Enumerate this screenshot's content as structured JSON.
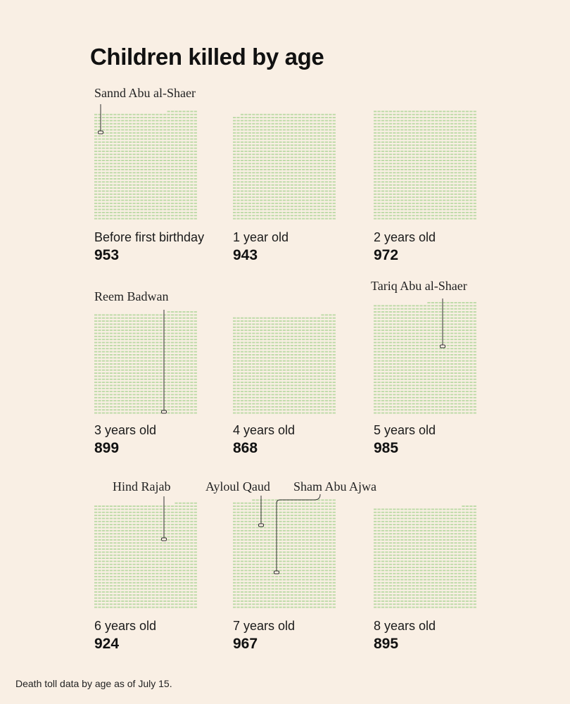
{
  "title": "Children killed by age",
  "footnote": "Death toll data by age as of July 15.",
  "colors": {
    "background": "#f9efe4",
    "tick": "#bcdaa6",
    "leader": "#333333"
  },
  "chart_data": {
    "type": "unit-grid",
    "title": "Children killed by age",
    "units_per_row": 27,
    "panels": [
      {
        "label": "Before first birthday",
        "count_text": "953",
        "value": 953
      },
      {
        "label": "1 year old",
        "count_text": "943",
        "value": 943
      },
      {
        "label": "2 years old",
        "count_text": "972",
        "value": 972
      },
      {
        "label": "3 years old",
        "count_text": "899",
        "value": 899
      },
      {
        "label": "4 years old",
        "count_text": "868",
        "value": 868
      },
      {
        "label": "5 years old",
        "count_text": "985",
        "value": 985
      },
      {
        "label": "6 years old",
        "count_text": "924",
        "value": 924
      },
      {
        "label": "7 years old",
        "count_text": "967",
        "value": 967
      },
      {
        "label": "8 years old",
        "count_text": "895",
        "value": 895
      }
    ],
    "annotations": [
      {
        "name": "Sannd Abu al-Shaer",
        "panel": 0
      },
      {
        "name": "Reem Badwan",
        "panel": 3
      },
      {
        "name": "Tariq Abu al-Shaer",
        "panel": 5
      },
      {
        "name": "Hind Rajab",
        "panel": 6
      },
      {
        "name": "Ayloul Qaud",
        "panel": 7
      },
      {
        "name": "Sham Abu Ajwa",
        "panel": 7
      }
    ]
  }
}
